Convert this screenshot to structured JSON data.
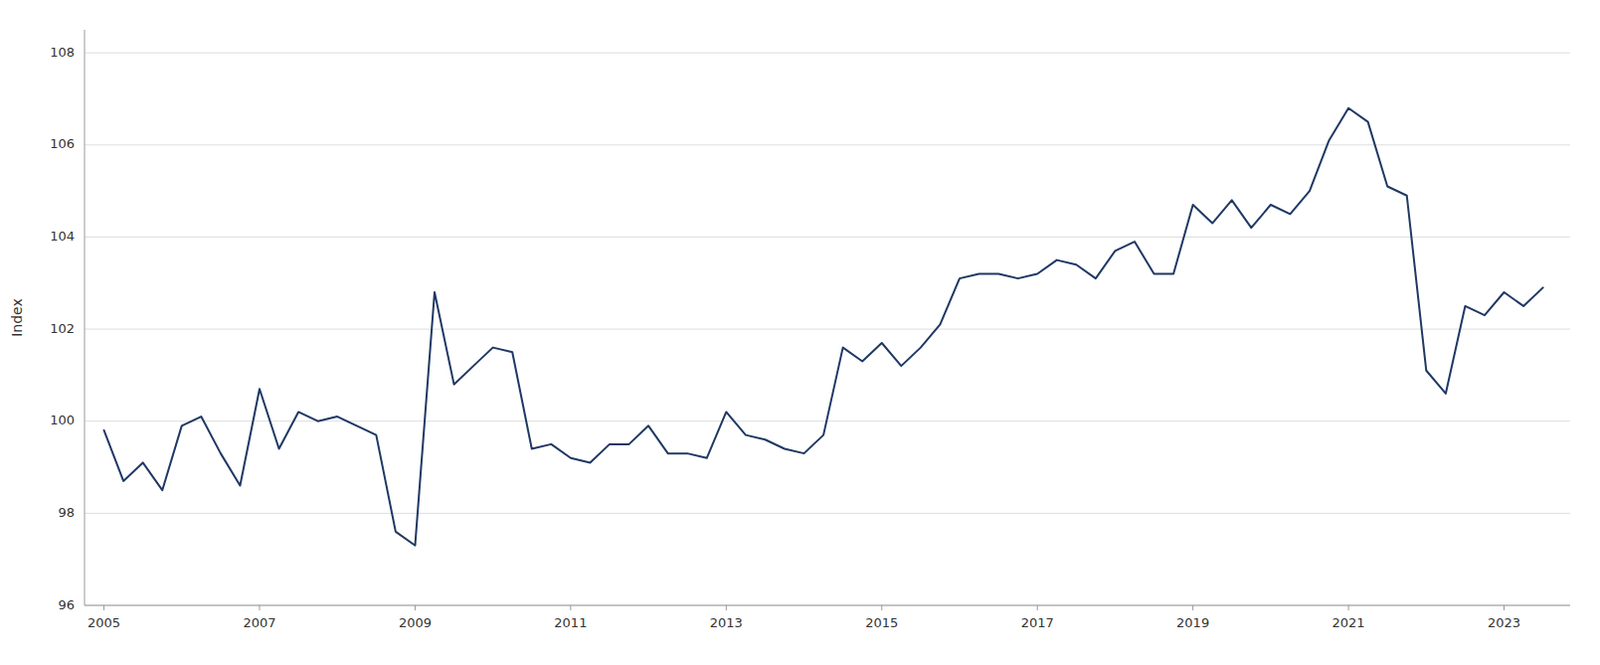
{
  "chart_data": {
    "type": "line",
    "y_label": "Index",
    "color": "#1f3864",
    "grid": true,
    "xlim": [
      2004.75,
      2023.85
    ],
    "xticks": [
      2005,
      2007,
      2009,
      2011,
      2013,
      2015,
      2017,
      2019,
      2021,
      2023
    ],
    "ylim": [
      96,
      108.5
    ],
    "yticks": [
      96,
      98,
      100,
      102,
      104,
      106,
      108
    ],
    "x": [
      2005.0,
      2005.25,
      2005.5,
      2005.75,
      2006.0,
      2006.25,
      2006.5,
      2006.75,
      2007.0,
      2007.25,
      2007.5,
      2007.75,
      2008.0,
      2008.25,
      2008.5,
      2008.75,
      2009.0,
      2009.25,
      2009.5,
      2009.75,
      2010.0,
      2010.25,
      2010.5,
      2010.75,
      2011.0,
      2011.25,
      2011.5,
      2011.75,
      2012.0,
      2012.25,
      2012.5,
      2012.75,
      2013.0,
      2013.25,
      2013.5,
      2013.75,
      2014.0,
      2014.25,
      2014.5,
      2014.75,
      2015.0,
      2015.25,
      2015.5,
      2015.75,
      2016.0,
      2016.25,
      2016.5,
      2016.75,
      2017.0,
      2017.25,
      2017.5,
      2017.75,
      2018.0,
      2018.25,
      2018.5,
      2018.75,
      2019.0,
      2019.25,
      2019.5,
      2019.75,
      2020.0,
      2020.25,
      2020.5,
      2020.75,
      2021.0,
      2021.25,
      2021.5,
      2021.75,
      2022.0,
      2022.25,
      2022.5,
      2022.75,
      2023.0,
      2023.25,
      2023.5
    ],
    "values": [
      99.8,
      98.7,
      99.1,
      98.5,
      99.9,
      100.1,
      99.3,
      98.6,
      100.7,
      99.4,
      100.2,
      100.0,
      100.1,
      99.9,
      99.7,
      97.6,
      97.3,
      102.8,
      100.8,
      101.2,
      101.6,
      101.5,
      99.4,
      99.5,
      99.2,
      99.1,
      99.5,
      99.5,
      99.9,
      99.3,
      99.3,
      99.2,
      100.2,
      99.7,
      99.6,
      99.4,
      99.3,
      99.7,
      101.6,
      101.3,
      101.7,
      101.2,
      101.6,
      102.1,
      103.1,
      103.2,
      103.2,
      103.1,
      103.2,
      103.5,
      103.4,
      103.1,
      103.7,
      103.9,
      103.2,
      103.2,
      104.7,
      104.3,
      104.8,
      104.2,
      104.7,
      104.5,
      105.0,
      106.1,
      106.8,
      106.5,
      105.1,
      104.9,
      101.1,
      100.6,
      102.5,
      102.3,
      102.8,
      102.5,
      102.9
    ]
  }
}
